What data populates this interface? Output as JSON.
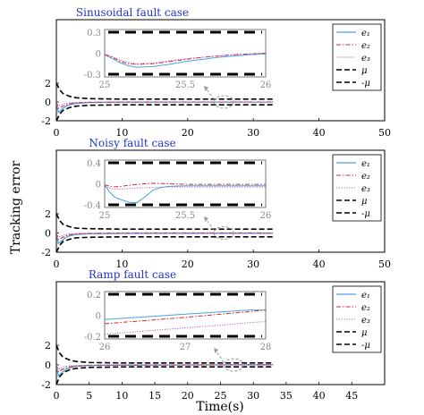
{
  "figure": {
    "ylabel": "Tracking error",
    "xlabel": "Time(s)",
    "colors": {
      "e1": "#4aa3df",
      "e2": "#d62728",
      "e3": "#b05fc8",
      "bound": "#000000",
      "title": "#2233cc",
      "inset_tick": "#888888"
    },
    "legend_labels": [
      "e₁",
      "e₂",
      "e₃",
      "μ",
      "-μ"
    ]
  },
  "chart_data": [
    {
      "type": "line",
      "title": "Sinusoidal fault case",
      "xlabel": "",
      "ylabel": "",
      "xlim": [
        0,
        50
      ],
      "ylim": [
        -2,
        2
      ],
      "x_ticks": [
        "0",
        "10",
        "20",
        "30",
        "40",
        "50"
      ],
      "y_ticks": [
        "2",
        "0",
        "-2"
      ],
      "mu": 0.3,
      "legend_placement": "top-right",
      "series": [
        {
          "name": "e₁",
          "x": [
            0,
            0.3,
            0.6,
            1,
            1.5,
            2,
            3,
            5,
            10,
            20,
            33
          ],
          "y": [
            0,
            -1.1,
            -0.95,
            -0.7,
            -0.45,
            -0.3,
            -0.15,
            -0.06,
            -0.02,
            -0.01,
            -0.01
          ]
        },
        {
          "name": "e₂",
          "x": [
            0,
            0.3,
            0.6,
            1,
            1.5,
            2,
            3,
            5,
            10,
            20,
            33
          ],
          "y": [
            0,
            -0.7,
            -0.6,
            -0.45,
            -0.3,
            -0.2,
            -0.1,
            -0.04,
            -0.01,
            0,
            0
          ]
        },
        {
          "name": "e₃",
          "x": [
            0,
            0.3,
            0.6,
            1,
            1.5,
            2,
            3,
            5,
            10,
            20,
            33
          ],
          "y": [
            0,
            -0.4,
            -0.35,
            -0.25,
            -0.15,
            -0.1,
            -0.05,
            -0.02,
            0,
            0,
            0
          ]
        },
        {
          "name": "μ",
          "x": [
            0,
            0.5,
            1,
            2,
            3,
            5,
            10,
            33
          ],
          "y": [
            2.0,
            1.3,
            0.9,
            0.6,
            0.45,
            0.35,
            0.3,
            0.3
          ]
        },
        {
          "name": "-μ",
          "x": [
            0,
            0.5,
            1,
            2,
            3,
            5,
            10,
            33
          ],
          "y": [
            -2.0,
            -1.3,
            -0.9,
            -0.6,
            -0.45,
            -0.35,
            -0.3,
            -0.3
          ]
        }
      ],
      "inset": {
        "xlim": [
          25,
          26
        ],
        "ylim": [
          -0.3,
          0.3
        ],
        "x_ticks": [
          "25",
          "25.5",
          "26"
        ],
        "y_ticks": [
          "0.3",
          "0",
          "-0.3"
        ],
        "series": [
          {
            "name": "e₁",
            "x": [
              25,
              25.05,
              25.1,
              25.15,
              25.2,
              25.3,
              25.4,
              25.5,
              25.6,
              25.7,
              25.8,
              25.9,
              26
            ],
            "y": [
              -0.02,
              -0.08,
              -0.14,
              -0.18,
              -0.2,
              -0.19,
              -0.16,
              -0.12,
              -0.09,
              -0.06,
              -0.04,
              -0.02,
              -0.01
            ]
          },
          {
            "name": "e₂",
            "x": [
              25,
              25.05,
              25.1,
              25.15,
              25.2,
              25.3,
              25.4,
              25.5,
              25.6,
              25.7,
              25.8,
              25.9,
              26
            ],
            "y": [
              -0.02,
              -0.06,
              -0.12,
              -0.15,
              -0.16,
              -0.15,
              -0.12,
              -0.09,
              -0.06,
              -0.04,
              -0.02,
              -0.01,
              0
            ]
          },
          {
            "name": "e₃",
            "x": [
              25,
              25.05,
              25.1,
              25.15,
              25.2,
              25.3,
              25.4,
              25.5,
              25.6,
              25.7,
              25.8,
              25.9,
              26
            ],
            "y": [
              -0.01,
              -0.05,
              -0.1,
              -0.13,
              -0.15,
              -0.14,
              -0.11,
              -0.08,
              -0.06,
              -0.04,
              -0.02,
              -0.01,
              0
            ]
          }
        ]
      }
    },
    {
      "type": "line",
      "title": "Noisy fault case",
      "xlabel": "",
      "ylabel": "",
      "xlim": [
        0,
        50
      ],
      "ylim": [
        -2,
        2
      ],
      "x_ticks": [
        "0",
        "10",
        "20",
        "30",
        "40",
        "50"
      ],
      "y_ticks": [
        "2",
        "0",
        "-2"
      ],
      "mu": 0.4,
      "legend_placement": "top-right",
      "series": [
        {
          "name": "e₁",
          "x": [
            0,
            0.3,
            0.6,
            1,
            1.5,
            2,
            3,
            5,
            10,
            20,
            33
          ],
          "y": [
            0,
            -1.1,
            -0.95,
            -0.7,
            -0.45,
            -0.3,
            -0.15,
            -0.08,
            -0.05,
            -0.03,
            -0.03
          ]
        },
        {
          "name": "e₂",
          "x": [
            0,
            0.3,
            0.6,
            1,
            1.5,
            2,
            3,
            5,
            10,
            20,
            33
          ],
          "y": [
            0,
            -0.7,
            -0.6,
            -0.45,
            -0.3,
            -0.2,
            -0.1,
            -0.04,
            0,
            0.01,
            0
          ]
        },
        {
          "name": "e₃",
          "x": [
            0,
            0.3,
            0.6,
            1,
            1.5,
            2,
            3,
            5,
            10,
            20,
            33
          ],
          "y": [
            0,
            -0.4,
            -0.35,
            -0.25,
            -0.15,
            -0.1,
            -0.06,
            -0.04,
            -0.03,
            -0.02,
            -0.02
          ]
        },
        {
          "name": "μ",
          "x": [
            0,
            0.5,
            1,
            2,
            3,
            5,
            10,
            33
          ],
          "y": [
            2.0,
            1.3,
            0.9,
            0.65,
            0.5,
            0.45,
            0.4,
            0.4
          ]
        },
        {
          "name": "-μ",
          "x": [
            0,
            0.5,
            1,
            2,
            3,
            5,
            10,
            33
          ],
          "y": [
            -2.0,
            -1.3,
            -0.9,
            -0.65,
            -0.5,
            -0.45,
            -0.4,
            -0.4
          ]
        }
      ],
      "inset": {
        "xlim": [
          25,
          26
        ],
        "ylim": [
          -0.4,
          0.4
        ],
        "x_ticks": [
          "25",
          "25.5",
          "26"
        ],
        "y_ticks": [
          "0.4",
          "0",
          "-0.4"
        ],
        "series": [
          {
            "name": "e₁",
            "x": [
              25,
              25.03,
              25.06,
              25.1,
              25.15,
              25.2,
              25.25,
              25.3,
              25.35,
              25.4,
              25.5,
              25.6,
              25.8,
              26
            ],
            "y": [
              -0.02,
              -0.15,
              -0.25,
              -0.3,
              -0.35,
              -0.36,
              -0.25,
              -0.12,
              -0.07,
              -0.05,
              -0.04,
              -0.04,
              -0.04,
              -0.04
            ]
          },
          {
            "name": "e₂",
            "x": [
              25,
              25.05,
              25.1,
              25.2,
              25.3,
              25.4,
              25.5,
              25.6,
              25.8,
              26
            ],
            "y": [
              -0.02,
              -0.06,
              -0.05,
              -0.01,
              0.01,
              0.0,
              -0.01,
              -0.01,
              -0.01,
              -0.01
            ]
          },
          {
            "name": "e₃",
            "x": [
              25,
              25.05,
              25.1,
              25.2,
              25.3,
              25.4,
              25.5,
              25.6,
              25.8,
              26
            ],
            "y": [
              -0.05,
              -0.1,
              -0.1,
              -0.08,
              -0.07,
              -0.06,
              -0.06,
              -0.06,
              -0.06,
              -0.06
            ]
          }
        ]
      }
    },
    {
      "type": "line",
      "title": "Ramp fault case",
      "xlabel": "Time(s)",
      "ylabel": "",
      "xlim": [
        0,
        50
      ],
      "ylim": [
        -2,
        2
      ],
      "x_ticks": [
        "0",
        "5",
        "10",
        "15",
        "20",
        "25",
        "30",
        "35",
        "40",
        "45"
      ],
      "y_ticks": [
        "2",
        "0",
        "-2"
      ],
      "mu": 0.2,
      "legend_placement": "top-right",
      "series": [
        {
          "name": "e₁",
          "x": [
            0,
            0.3,
            0.6,
            1,
            1.5,
            2,
            3,
            5,
            10,
            20,
            33
          ],
          "y": [
            0,
            -1.1,
            -0.95,
            -0.7,
            -0.45,
            -0.3,
            -0.15,
            -0.06,
            -0.02,
            0,
            0.02
          ]
        },
        {
          "name": "e₂",
          "x": [
            0,
            0.3,
            0.6,
            1,
            1.5,
            2,
            3,
            5,
            10,
            20,
            33
          ],
          "y": [
            0,
            -0.7,
            -0.6,
            -0.45,
            -0.3,
            -0.2,
            -0.1,
            -0.04,
            -0.02,
            0,
            0.02
          ]
        },
        {
          "name": "e₃",
          "x": [
            0,
            0.3,
            0.6,
            1,
            1.5,
            2,
            3,
            5,
            10,
            20,
            33
          ],
          "y": [
            0,
            -0.4,
            -0.35,
            -0.25,
            -0.15,
            -0.1,
            -0.06,
            -0.04,
            -0.03,
            -0.02,
            0
          ]
        },
        {
          "name": "μ",
          "x": [
            0,
            0.5,
            1,
            2,
            3,
            5,
            10,
            33
          ],
          "y": [
            2.0,
            1.2,
            0.8,
            0.5,
            0.35,
            0.25,
            0.2,
            0.2
          ]
        },
        {
          "name": "-μ",
          "x": [
            0,
            0.5,
            1,
            2,
            3,
            5,
            10,
            33
          ],
          "y": [
            -2.0,
            -1.2,
            -0.8,
            -0.5,
            -0.35,
            -0.25,
            -0.2,
            -0.2
          ]
        }
      ],
      "inset": {
        "xlim": [
          26,
          28
        ],
        "ylim": [
          -0.2,
          0.2
        ],
        "x_ticks": [
          "26",
          "27",
          "28"
        ],
        "y_ticks": [
          "0.2",
          "0",
          "-0.2"
        ],
        "series": [
          {
            "name": "e₁",
            "x": [
              26,
              26.5,
              27,
              27.5,
              27.8,
              28
            ],
            "y": [
              -0.04,
              -0.015,
              0.01,
              0.035,
              0.05,
              0.05
            ]
          },
          {
            "name": "e₂",
            "x": [
              26,
              26.5,
              27,
              27.5,
              27.8,
              28
            ],
            "y": [
              -0.08,
              -0.05,
              -0.02,
              0.015,
              0.035,
              0.05
            ]
          },
          {
            "name": "e₃",
            "x": [
              26,
              26.5,
              27,
              27.5,
              27.8,
              28
            ],
            "y": [
              -0.18,
              -0.15,
              -0.12,
              -0.09,
              -0.07,
              -0.06
            ]
          }
        ]
      }
    }
  ]
}
